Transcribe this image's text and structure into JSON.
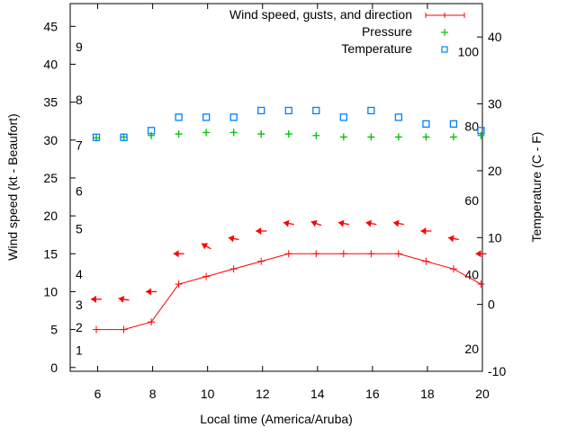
{
  "chart_data": {
    "type": "line",
    "xlabel": "Local time (America/Aruba)",
    "ylabel": "Wind speed (kt - Beaufort)",
    "y2label": "Temperature (C - F)",
    "xlim": [
      5,
      20
    ],
    "ylim": [
      -0.5,
      48
    ],
    "y2lim": [
      -10,
      45
    ],
    "x_ticks": [
      6,
      8,
      10,
      12,
      14,
      16,
      18,
      20
    ],
    "y_ticks": [
      0,
      5,
      10,
      15,
      20,
      25,
      30,
      35,
      40,
      45
    ],
    "y2_ticks": [
      -10,
      0,
      10,
      20,
      30,
      40
    ],
    "beaufort_labels": [
      {
        "label": "1",
        "kt": 1
      },
      {
        "label": "2",
        "kt": 4
      },
      {
        "label": "3",
        "kt": 7
      },
      {
        "label": "4",
        "kt": 11
      },
      {
        "label": "5",
        "kt": 17
      },
      {
        "label": "6",
        "kt": 22
      },
      {
        "label": "7",
        "kt": 28
      },
      {
        "label": "8",
        "kt": 34
      },
      {
        "label": "9",
        "kt": 41
      }
    ],
    "fahrenheit_labels": [
      20,
      40,
      60,
      80,
      100
    ],
    "legend_position": "top-right",
    "x": [
      5.95,
      6.95,
      7.95,
      8.95,
      9.95,
      10.95,
      11.95,
      12.95,
      13.95,
      14.95,
      15.95,
      16.95,
      17.95,
      18.95,
      19.95
    ],
    "series": [
      {
        "name": "Wind speed, gusts, and direction",
        "color": "#ff0000",
        "speed": [
          5,
          5,
          6,
          11,
          12,
          13,
          14,
          15,
          15,
          15,
          15,
          15,
          14,
          13,
          11
        ],
        "gusts": [
          9,
          9,
          10,
          15,
          16,
          17,
          18,
          19,
          19,
          19,
          19,
          19,
          18,
          17,
          15
        ],
        "direction_deg": [
          90,
          100,
          90,
          90,
          120,
          100,
          90,
          100,
          110,
          100,
          100,
          100,
          90,
          100,
          90
        ]
      },
      {
        "name": "Pressure",
        "color": "#00c000",
        "values": [
          30.3,
          30.4,
          30.6,
          30.8,
          31.0,
          31.0,
          30.8,
          30.8,
          30.6,
          30.4,
          30.4,
          30.4,
          30.4,
          30.4,
          30.6
        ]
      },
      {
        "name": "Temperature",
        "color": "#0080ff",
        "axis": "y2",
        "values": [
          25,
          25,
          26,
          28,
          28,
          28,
          29,
          29,
          29,
          28,
          29,
          28,
          27,
          27,
          26
        ]
      }
    ]
  }
}
